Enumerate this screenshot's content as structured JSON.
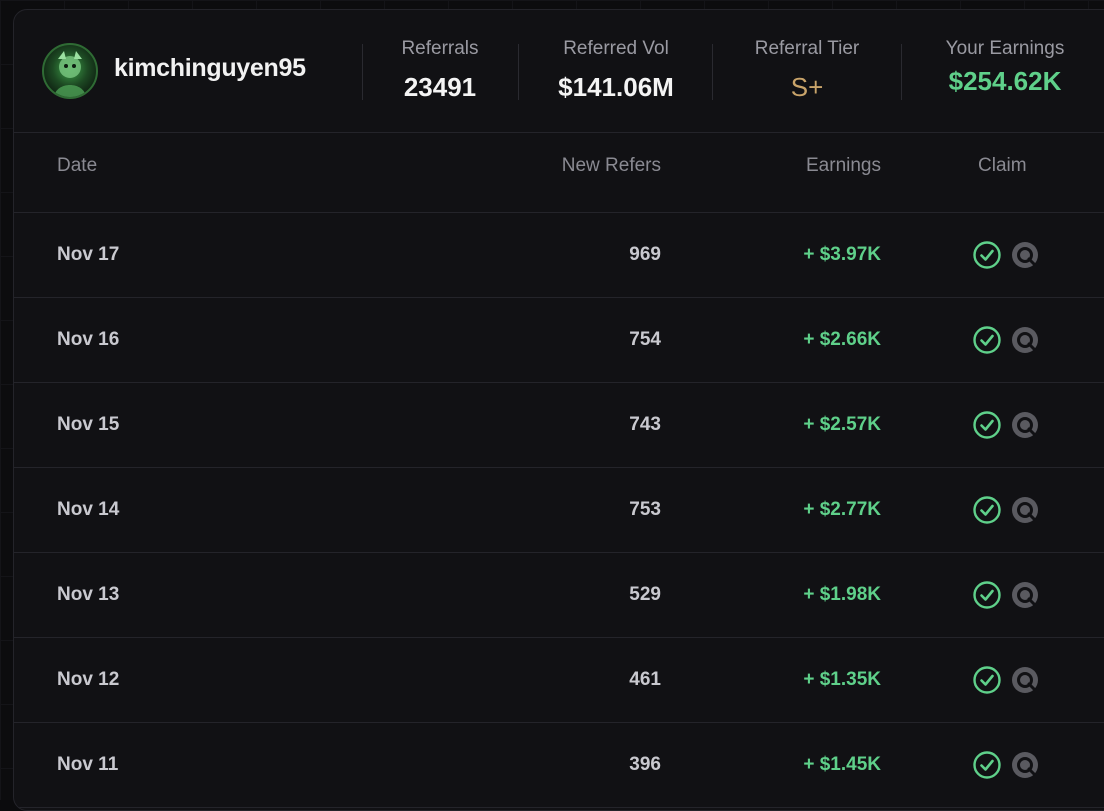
{
  "profile": {
    "username": "kimchinguyen95"
  },
  "stats": [
    {
      "label": "Referrals",
      "value": "23491",
      "color": "#f4f4f4"
    },
    {
      "label": "Referred Vol",
      "value": "$141.06M",
      "color": "#f4f4f4"
    },
    {
      "label": "Referral Tier",
      "value": "S+",
      "color": "#c9a46a"
    },
    {
      "label": "Your Earnings",
      "value": "$254.62K",
      "color": "#5fd08a"
    }
  ],
  "table": {
    "headers": {
      "date": "Date",
      "new_refers": "New Refers",
      "earnings": "Earnings",
      "claim": "Claim"
    },
    "rows": [
      {
        "date": "Nov 17",
        "new_refers": "969",
        "earnings": "+ $3.97K"
      },
      {
        "date": "Nov 16",
        "new_refers": "754",
        "earnings": "+ $2.66K"
      },
      {
        "date": "Nov 15",
        "new_refers": "743",
        "earnings": "+ $2.57K"
      },
      {
        "date": "Nov 14",
        "new_refers": "753",
        "earnings": "+ $2.77K"
      },
      {
        "date": "Nov 13",
        "new_refers": "529",
        "earnings": "+ $1.98K"
      },
      {
        "date": "Nov 12",
        "new_refers": "461",
        "earnings": "+ $1.35K"
      },
      {
        "date": "Nov 11",
        "new_refers": "396",
        "earnings": "+ $1.45K"
      }
    ]
  },
  "icons": {
    "claimed": "check-circle-icon",
    "explorer": "explorer-link-icon"
  },
  "colors": {
    "accent_green": "#5fd08a",
    "tier_gold": "#c9a46a"
  }
}
